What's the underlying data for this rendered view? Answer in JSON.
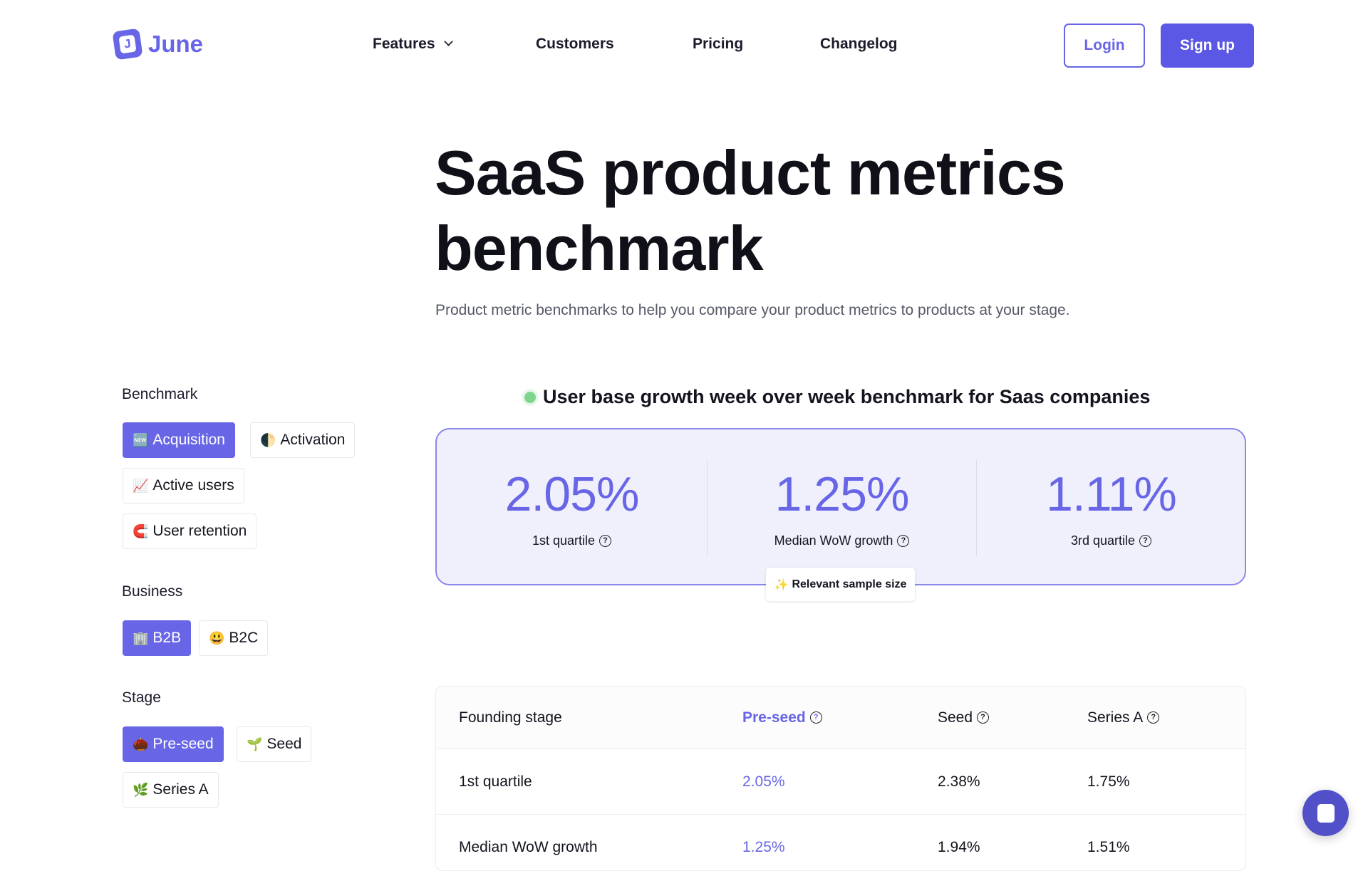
{
  "header": {
    "logo": "June",
    "logo_mark": "J",
    "nav": [
      "Features",
      "Customers",
      "Pricing",
      "Changelog"
    ],
    "login": "Login",
    "signup": "Sign up"
  },
  "hero": {
    "title": "SaaS product metrics benchmark",
    "subtitle": "Product metric benchmarks to help you compare your product metrics to products at your stage."
  },
  "filters": {
    "benchmark": {
      "label": "Benchmark",
      "items": [
        {
          "emoji": "🆕",
          "label": "Acquisition",
          "active": true
        },
        {
          "emoji": "🌓",
          "label": "Activation"
        },
        {
          "emoji": "📈",
          "label": "Active users"
        },
        {
          "emoji": "🧲",
          "label": "User retention"
        }
      ]
    },
    "business": {
      "label": "Business",
      "items": [
        {
          "emoji": "🏢",
          "label": "B2B",
          "active": true
        },
        {
          "emoji": "😃",
          "label": "B2C"
        }
      ]
    },
    "stage": {
      "label": "Stage",
      "items": [
        {
          "emoji": "🌰",
          "label": "Pre-seed",
          "active": true
        },
        {
          "emoji": "🌱",
          "label": "Seed"
        },
        {
          "emoji": "🌿",
          "label": "Series A"
        }
      ]
    }
  },
  "benchmark": {
    "heading": "User base growth week over week benchmark for Saas companies",
    "stats": [
      {
        "value": "2.05%",
        "label": "1st quartile"
      },
      {
        "value": "1.25%",
        "label": "Median WoW growth"
      },
      {
        "value": "1.11%",
        "label": "3rd quartile"
      }
    ],
    "sample_badge": "Relevant sample size",
    "sample_emoji": "✨"
  },
  "table": {
    "headers": [
      "Founding stage",
      "Pre-seed",
      "Seed",
      "Series A"
    ],
    "rows": [
      [
        "1st quartile",
        "2.05%",
        "2.38%",
        "1.75%"
      ],
      [
        "Median WoW growth",
        "1.25%",
        "1.94%",
        "1.51%"
      ]
    ]
  },
  "colors": {
    "accent": "#6866e6",
    "status": "#7fd48e"
  }
}
